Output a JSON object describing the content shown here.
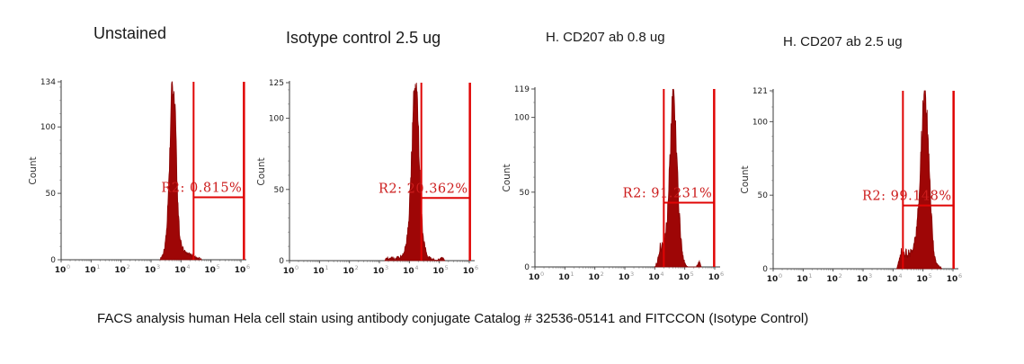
{
  "page": {
    "caption": "FACS analysis human Hela cell stain using antibody conjugate Catalog # 32536-05141 and FITCCON (Isotype Control)"
  },
  "colors": {
    "histogram_fill": "#9e0606",
    "histogram_stroke": "#8a0404",
    "gate_line": "#e00404",
    "gate_label": "#cc1c1c",
    "axis_line": "#3a3a3a",
    "tick_major": "#555555",
    "tick_minor": "#bbbbbb",
    "tick_label": "#1c1c1c",
    "exponent_label": "#999999",
    "title_text": "#1a1a1a"
  },
  "chart_data": [
    {
      "type": "area",
      "title": "Unstained",
      "ylabel": "Count",
      "ymax": 134,
      "y_ticks": [
        0,
        50,
        100,
        134
      ],
      "x_log_range": [
        0,
        6
      ],
      "x_tick_base": "10",
      "x_tick_exponents": [
        0,
        1,
        2,
        3,
        4,
        5,
        6
      ],
      "gate": {
        "label": "R2: 0.815%",
        "left_log": 4.42,
        "right_log": 6.1,
        "count_level": 47
      },
      "profile_log_count": [
        [
          3.3,
          0
        ],
        [
          3.38,
          3
        ],
        [
          3.45,
          8
        ],
        [
          3.52,
          22
        ],
        [
          3.58,
          48
        ],
        [
          3.64,
          92
        ],
        [
          3.68,
          118
        ],
        [
          3.71,
          134
        ],
        [
          3.74,
          112
        ],
        [
          3.77,
          134
        ],
        [
          3.8,
          116
        ],
        [
          3.83,
          88
        ],
        [
          3.87,
          58
        ],
        [
          3.91,
          34
        ],
        [
          3.96,
          18
        ],
        [
          4.02,
          10
        ],
        [
          4.1,
          7
        ],
        [
          4.2,
          5
        ],
        [
          4.3,
          4
        ],
        [
          4.4,
          3
        ],
        [
          4.5,
          2
        ],
        [
          4.6,
          1
        ],
        [
          4.68,
          0
        ]
      ]
    },
    {
      "type": "area",
      "title": "Isotype control 2.5 ug",
      "ylabel": "Count",
      "ymax": 125,
      "y_ticks": [
        0,
        50,
        100,
        125
      ],
      "x_log_range": [
        0,
        6
      ],
      "x_tick_base": "10",
      "x_tick_exponents": [
        0,
        1,
        2,
        3,
        4,
        5,
        6
      ],
      "gate": {
        "label": "R2: 20.362%",
        "left_log": 4.4,
        "right_log": 6.02,
        "count_level": 44
      },
      "profile_log_count": [
        [
          3.18,
          0
        ],
        [
          3.25,
          2
        ],
        [
          3.32,
          1
        ],
        [
          3.42,
          2
        ],
        [
          3.52,
          1
        ],
        [
          3.62,
          2
        ],
        [
          3.72,
          3
        ],
        [
          3.82,
          6
        ],
        [
          3.9,
          12
        ],
        [
          3.97,
          24
        ],
        [
          4.03,
          48
        ],
        [
          4.09,
          80
        ],
        [
          4.14,
          108
        ],
        [
          4.18,
          125
        ],
        [
          4.21,
          112
        ],
        [
          4.25,
          125
        ],
        [
          4.29,
          100
        ],
        [
          4.33,
          72
        ],
        [
          4.38,
          44
        ],
        [
          4.44,
          22
        ],
        [
          4.51,
          10
        ],
        [
          4.59,
          4
        ],
        [
          4.67,
          2
        ],
        [
          4.76,
          1
        ],
        [
          4.86,
          0
        ],
        [
          5.05,
          1
        ],
        [
          5.12,
          2
        ],
        [
          5.18,
          0
        ]
      ]
    },
    {
      "type": "area",
      "title": "H. CD207 ab 0.8 ug",
      "ylabel": "Count",
      "ymax": 119,
      "y_ticks": [
        0,
        50,
        100,
        119
      ],
      "x_log_range": [
        0,
        6
      ],
      "x_tick_base": "10",
      "x_tick_exponents": [
        0,
        1,
        2,
        3,
        4,
        5,
        6
      ],
      "gate": {
        "label": "R2: 91.231%",
        "left_log": 4.3,
        "right_log": 5.98,
        "count_level": 43
      },
      "profile_log_count": [
        [
          4.0,
          0
        ],
        [
          4.08,
          3
        ],
        [
          4.14,
          8
        ],
        [
          4.18,
          14
        ],
        [
          4.22,
          10
        ],
        [
          4.26,
          16
        ],
        [
          4.3,
          14
        ],
        [
          4.34,
          20
        ],
        [
          4.38,
          26
        ],
        [
          4.42,
          34
        ],
        [
          4.46,
          48
        ],
        [
          4.5,
          68
        ],
        [
          4.54,
          92
        ],
        [
          4.58,
          110
        ],
        [
          4.62,
          119
        ],
        [
          4.66,
          108
        ],
        [
          4.7,
          92
        ],
        [
          4.75,
          66
        ],
        [
          4.8,
          42
        ],
        [
          4.86,
          22
        ],
        [
          4.92,
          10
        ],
        [
          4.98,
          4
        ],
        [
          5.04,
          1
        ],
        [
          5.1,
          0
        ],
        [
          5.4,
          0
        ],
        [
          5.45,
          2
        ],
        [
          5.5,
          3
        ],
        [
          5.55,
          0
        ]
      ]
    },
    {
      "type": "area",
      "title": "H. CD207 ab 2.5 ug",
      "ylabel": "Count",
      "ymax": 121,
      "y_ticks": [
        0,
        50,
        100,
        121
      ],
      "x_log_range": [
        0,
        6
      ],
      "x_tick_base": "10",
      "x_tick_exponents": [
        0,
        1,
        2,
        3,
        4,
        5,
        6
      ],
      "gate": {
        "label": "R2: 99.148%",
        "left_log": 4.33,
        "right_log": 6.02,
        "count_level": 43
      },
      "profile_log_count": [
        [
          4.12,
          0
        ],
        [
          4.18,
          4
        ],
        [
          4.24,
          9
        ],
        [
          4.28,
          12
        ],
        [
          4.32,
          7
        ],
        [
          4.36,
          11
        ],
        [
          4.4,
          8
        ],
        [
          4.44,
          12
        ],
        [
          4.48,
          8
        ],
        [
          4.52,
          11
        ],
        [
          4.56,
          9
        ],
        [
          4.6,
          12
        ],
        [
          4.66,
          14
        ],
        [
          4.72,
          18
        ],
        [
          4.78,
          26
        ],
        [
          4.84,
          40
        ],
        [
          4.9,
          62
        ],
        [
          4.95,
          85
        ],
        [
          5.0,
          105
        ],
        [
          5.04,
          118
        ],
        [
          5.07,
          121
        ],
        [
          5.11,
          112
        ],
        [
          5.16,
          96
        ],
        [
          5.21,
          70
        ],
        [
          5.26,
          46
        ],
        [
          5.31,
          26
        ],
        [
          5.36,
          13
        ],
        [
          5.42,
          6
        ],
        [
          5.48,
          2
        ],
        [
          5.55,
          1
        ],
        [
          5.62,
          0
        ]
      ]
    }
  ]
}
